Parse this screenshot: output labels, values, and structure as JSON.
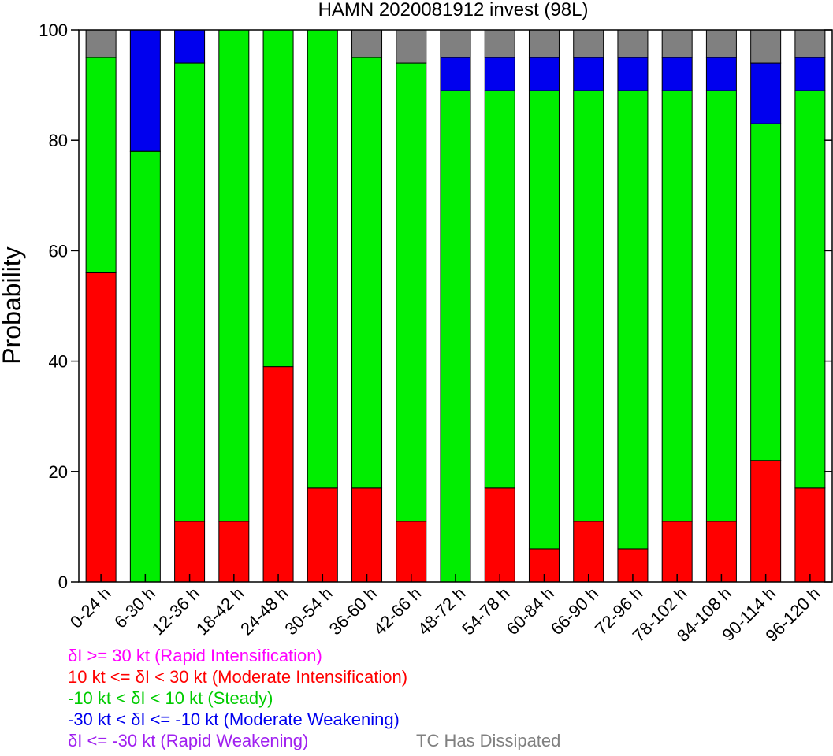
{
  "chart_data": {
    "type": "bar",
    "stacked": true,
    "title": "HAMN 2020081912 invest (98L)",
    "xlabel": "",
    "ylabel": "Probability",
    "ylim": [
      0,
      100
    ],
    "yticks": [
      0,
      20,
      40,
      60,
      80,
      100
    ],
    "grid": false,
    "categories": [
      "0-24 h",
      "6-30 h",
      "12-36 h",
      "18-42 h",
      "24-48 h",
      "30-54 h",
      "36-60 h",
      "42-66 h",
      "48-72 h",
      "54-78 h",
      "60-84 h",
      "66-90 h",
      "72-96 h",
      "78-102 h",
      "84-108 h",
      "90-114 h",
      "96-120 h"
    ],
    "series": [
      {
        "name": "δI >= 30 kt (Rapid Intensification)",
        "color": "#ff00ff",
        "values": [
          0,
          0,
          0,
          0,
          0,
          0,
          0,
          0,
          0,
          0,
          0,
          0,
          0,
          0,
          0,
          0,
          0
        ]
      },
      {
        "name": "10 kt <= δI < 30 kt (Moderate Intensification)",
        "color": "#ff0000",
        "values": [
          56,
          0,
          11,
          11,
          39,
          17,
          17,
          11,
          0,
          17,
          6,
          11,
          6,
          11,
          11,
          22,
          17
        ]
      },
      {
        "name": "-10 kt < δI < 10 kt (Steady)",
        "color": "#00ee00",
        "values": [
          39,
          78,
          83,
          89,
          61,
          83,
          78,
          83,
          89,
          72,
          83,
          78,
          83,
          78,
          78,
          61,
          72
        ]
      },
      {
        "name": "-30 kt < δI <= -10 kt (Moderate Weakening)",
        "color": "#0000ee",
        "values": [
          0,
          22,
          6,
          0,
          0,
          0,
          0,
          0,
          6,
          6,
          6,
          6,
          6,
          6,
          6,
          11,
          6
        ]
      },
      {
        "name": "δI <= -30 kt (Rapid Weakening)",
        "color": "#a020f0",
        "values": [
          0,
          0,
          0,
          0,
          0,
          0,
          0,
          0,
          0,
          0,
          0,
          0,
          0,
          0,
          0,
          0,
          0
        ]
      },
      {
        "name": "TC Has Dissipated",
        "color": "#808080",
        "values": [
          5,
          0,
          0,
          0,
          0,
          0,
          5,
          6,
          5,
          5,
          5,
          5,
          5,
          5,
          5,
          6,
          5
        ]
      }
    ]
  },
  "legend": {
    "ri": "δI >= 30 kt (Rapid Intensification)",
    "mi": "10 kt <= δI < 30 kt (Moderate Intensification)",
    "steady": "-10 kt < δI < 10 kt (Steady)",
    "mw": "-30 kt < δI <= -10 kt (Moderate Weakening)",
    "rw": "δI <= -30 kt (Rapid Weakening)",
    "dissipated": "TC Has Dissipated"
  },
  "colors": {
    "ri": "#ff00ff",
    "mi": "#ff0000",
    "steady": "#00cc00",
    "mw": "#0000ee",
    "rw": "#a020f0",
    "dissipated": "#808080"
  }
}
